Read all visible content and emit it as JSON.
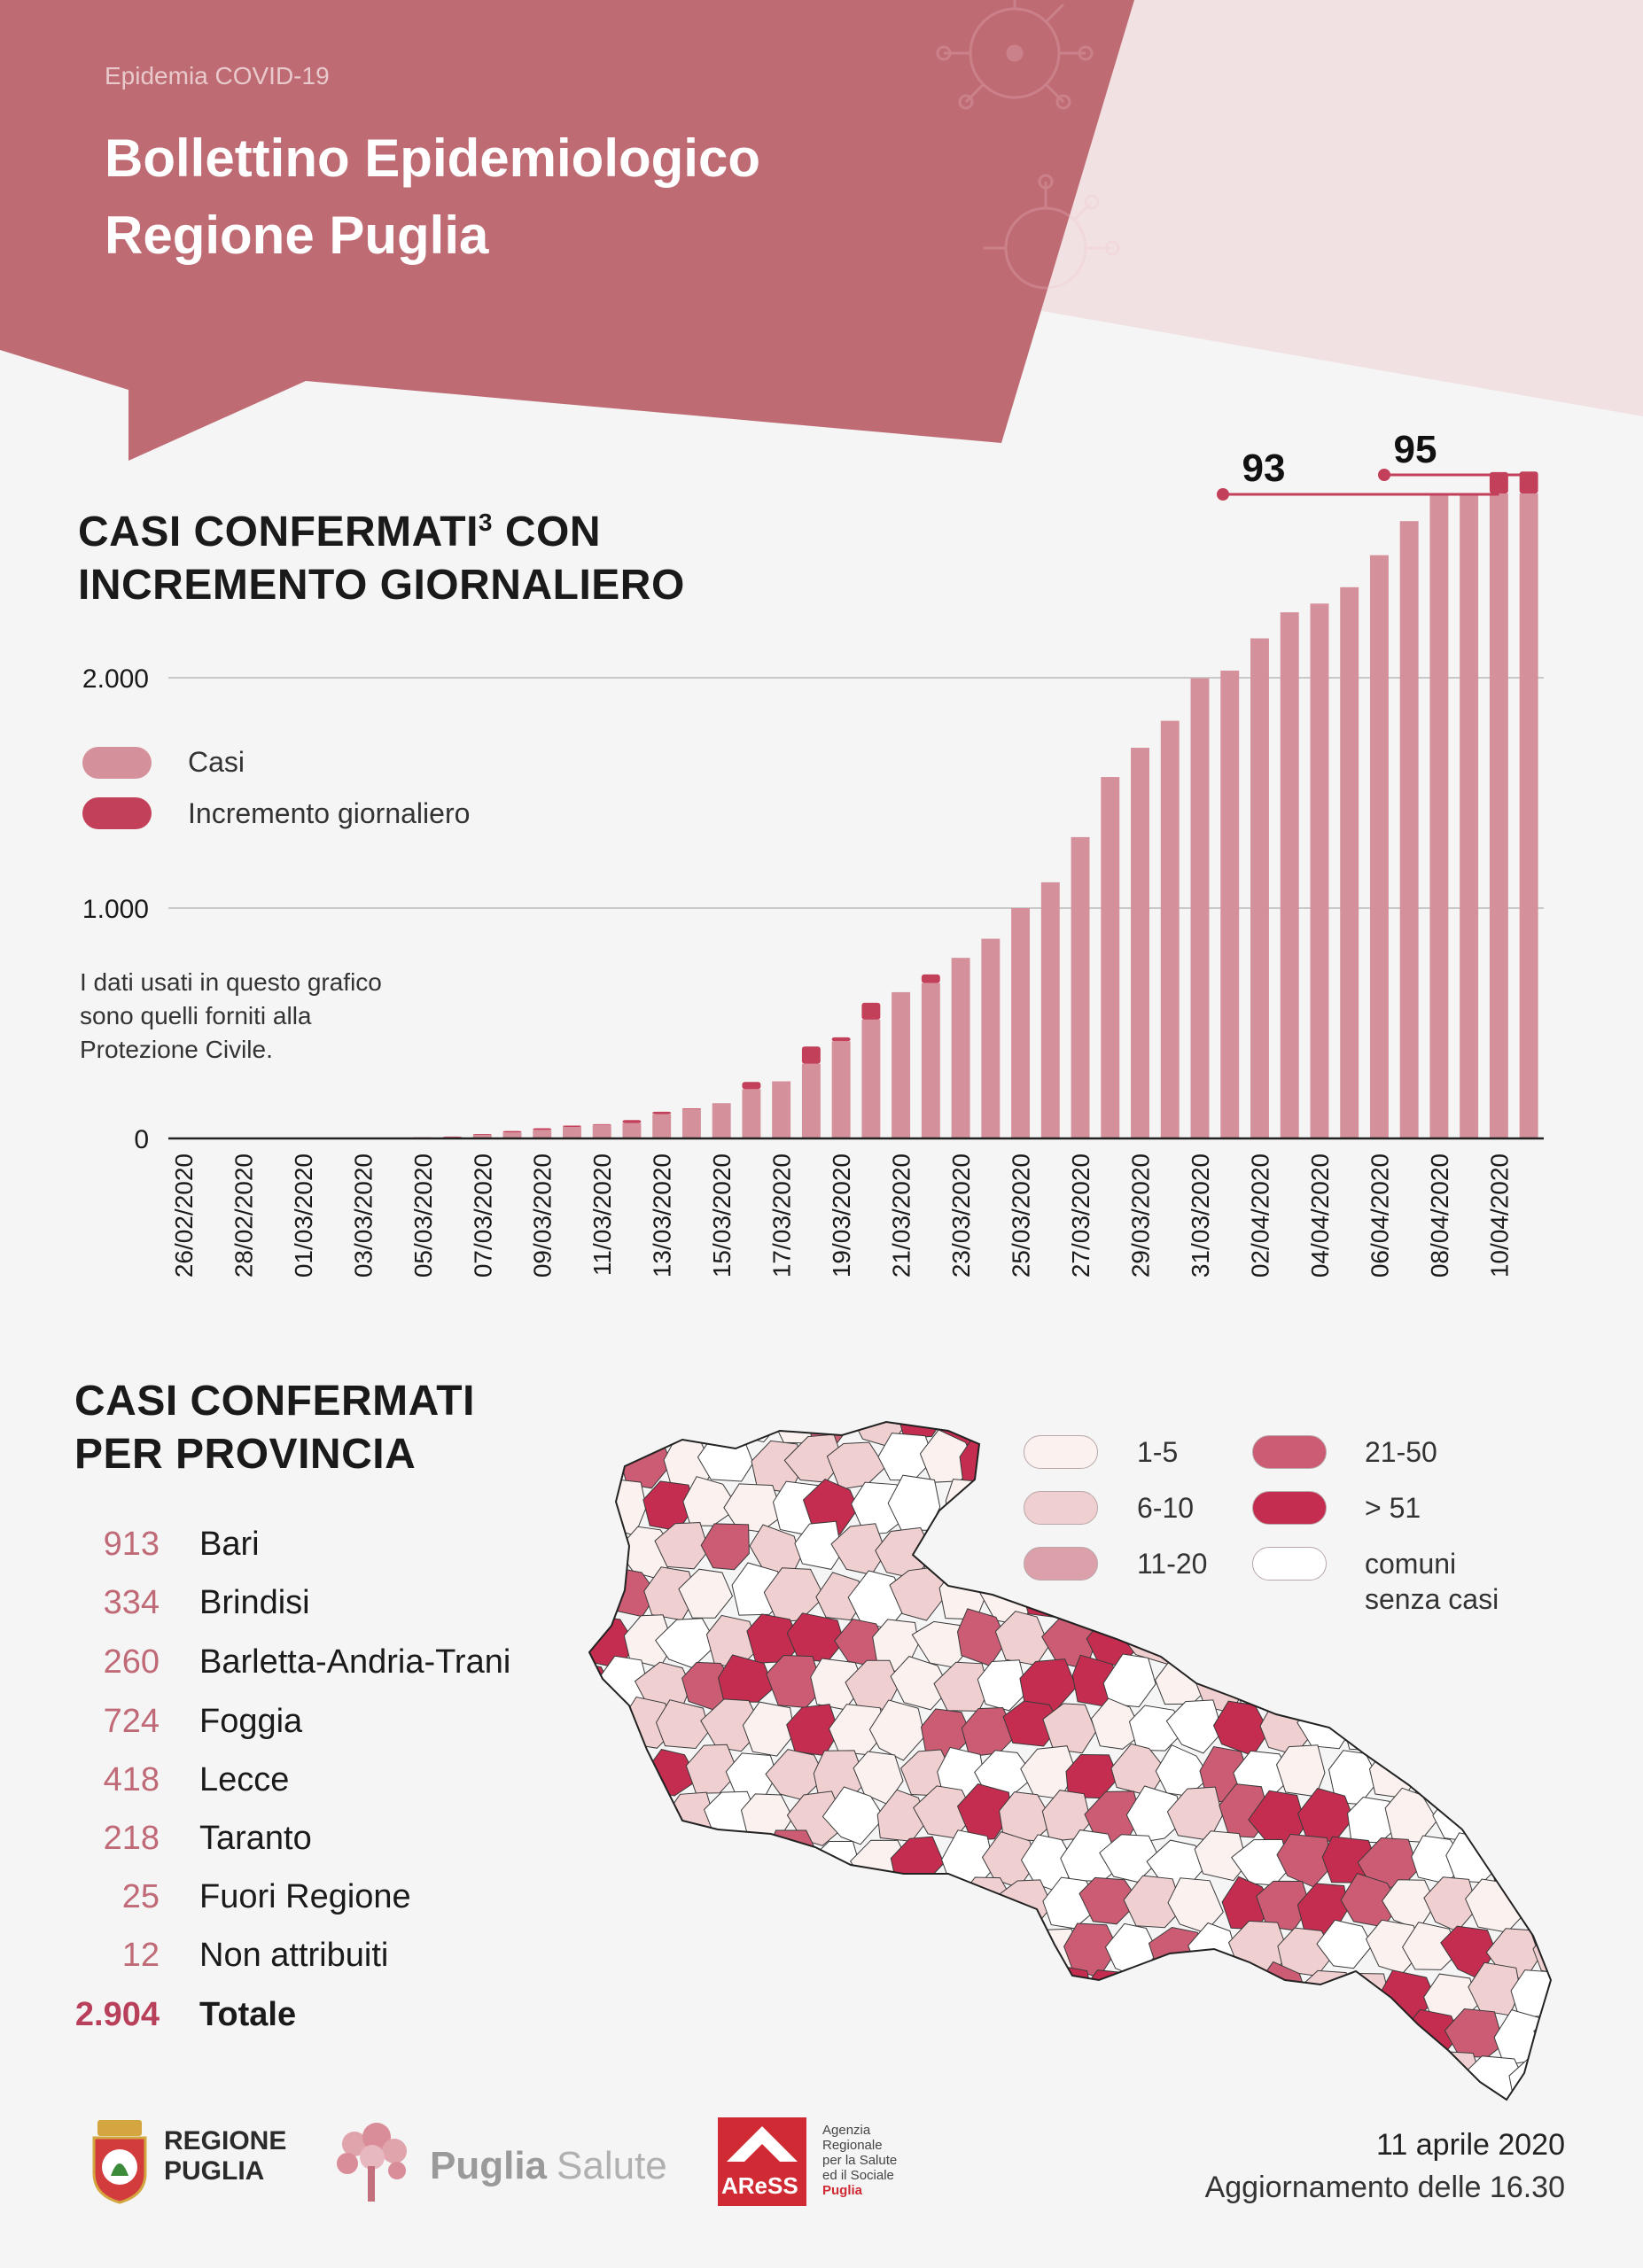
{
  "header": {
    "supertitle": "Epidemia COVID-19",
    "title_line1": "Bollettino Epidemiologico",
    "title_line2": "Regione Puglia"
  },
  "chart_section": {
    "title_line1": "CASI CONFERMATI",
    "title_sup": "3",
    "title_line1_rest": " CON",
    "title_line2": "INCREMENTO GIORNALIERO",
    "legend": [
      {
        "label": "Casi",
        "color": "#d4909b"
      },
      {
        "label": "Incremento giornaliero",
        "color": "#c3405a"
      }
    ],
    "note": [
      "I dati usati in questo grafico",
      "sono quelli forniti alla",
      "Protezione Civile."
    ],
    "callouts": [
      {
        "label": "93"
      },
      {
        "label": "95"
      }
    ]
  },
  "chart_data": {
    "type": "bar",
    "stacked": true,
    "ylim": [
      0,
      2800
    ],
    "yticks": [
      "0",
      "1.000",
      "2.000"
    ],
    "ytick_values": [
      0,
      1000,
      2000
    ],
    "xlabel": "",
    "ylabel": "",
    "grid": true,
    "legend_position": "left",
    "categories": [
      "26/02/2020",
      "27/02/2020",
      "28/02/2020",
      "29/02/2020",
      "01/03/2020",
      "02/03/2020",
      "03/03/2020",
      "04/03/2020",
      "05/03/2020",
      "06/03/2020",
      "07/03/2020",
      "08/03/2020",
      "09/03/2020",
      "10/03/2020",
      "11/03/2020",
      "12/03/2020",
      "13/03/2020",
      "14/03/2020",
      "15/03/2020",
      "16/03/2020",
      "17/03/2020",
      "18/03/2020",
      "19/03/2020",
      "20/03/2020",
      "21/03/2020",
      "22/03/2020",
      "23/03/2020",
      "24/03/2020",
      "25/03/2020",
      "26/03/2020",
      "27/03/2020",
      "28/03/2020",
      "29/03/2020",
      "30/03/2020",
      "31/03/2020",
      "01/04/2020",
      "02/04/2020",
      "03/04/2020",
      "04/04/2020",
      "05/04/2020",
      "06/04/2020",
      "07/04/2020",
      "08/04/2020",
      "09/04/2020",
      "10/04/2020",
      "11/04/2020"
    ],
    "tick_labels": [
      "26/02/2020",
      "28/02/2020",
      "01/03/2020",
      "03/03/2020",
      "05/03/2020",
      "07/03/2020",
      "09/03/2020",
      "11/03/2020",
      "13/03/2020",
      "15/03/2020",
      "17/03/2020",
      "19/03/2020",
      "21/03/2020",
      "23/03/2020",
      "25/03/2020",
      "27/03/2020",
      "29/03/2020",
      "31/03/2020",
      "02/04/2020",
      "04/04/2020",
      "06/04/2020",
      "08/04/2020",
      "10/04/2020"
    ],
    "series": [
      {
        "name": "Casi",
        "values": [
          0,
          0,
          0,
          0,
          0,
          0,
          0,
          0,
          3,
          6,
          16,
          26,
          37,
          50,
          59,
          67,
          106,
          128,
          153,
          214,
          248,
          324,
          422,
          516,
          635,
          675,
          784,
          867,
          1000,
          1112,
          1308,
          1569,
          1696,
          1813,
          1998,
          2031,
          2171,
          2284,
          2322,
          2393,
          2532,
          2680,
          2800,
          2800,
          2800,
          2800
        ]
      },
      {
        "name": "Incremento giornaliero",
        "values": [
          0,
          0,
          0,
          0,
          0,
          0,
          0,
          0,
          2,
          2,
          3,
          6,
          7,
          6,
          3,
          13,
          10,
          3,
          0,
          31,
          0,
          75,
          17,
          73,
          0,
          37,
          0,
          0,
          0,
          0,
          0,
          0,
          0,
          0,
          0,
          0,
          0,
          0,
          0,
          0,
          0,
          0,
          0,
          0,
          93,
          95
        ]
      }
    ]
  },
  "province_section": {
    "title_line1": "CASI CONFERMATI",
    "title_line2": "PER PROVINCIA",
    "rows": [
      {
        "value": "913",
        "name": "Bari"
      },
      {
        "value": "334",
        "name": "Brindisi"
      },
      {
        "value": "260",
        "name": "Barletta-Andria-Trani"
      },
      {
        "value": "724",
        "name": "Foggia"
      },
      {
        "value": "418",
        "name": "Lecce"
      },
      {
        "value": "218",
        "name": "Taranto"
      },
      {
        "value": "25",
        "name": "Fuori Regione"
      },
      {
        "value": "12",
        "name": "Non attribuiti"
      },
      {
        "value": "2.904",
        "name": "Totale"
      }
    ]
  },
  "map_legend": [
    {
      "label": "1-5",
      "color": "#fbf1ef"
    },
    {
      "label": "6-10",
      "color": "#f0cfd0"
    },
    {
      "label": "11-20",
      "color": "#dca0ab"
    },
    {
      "label": "21-50",
      "color": "#cc5c73"
    },
    {
      "label": "> 51",
      "color": "#c42d4f"
    },
    {
      "label": "comuni",
      "label2": "senza casi",
      "color": "#ffffff"
    }
  ],
  "footer": {
    "logo1_line1": "REGIONE",
    "logo1_line2": "PUGLIA",
    "logo2_bold": "Puglia",
    "logo2_light": "Salute",
    "logo3_badge": "AReSS",
    "logo3_text": [
      "Agenzia",
      "Regionale",
      "per la Salute",
      "ed il Sociale",
      "Puglia"
    ],
    "date": "11 aprile 2020",
    "update": "Aggiornamento delle 16.30"
  }
}
